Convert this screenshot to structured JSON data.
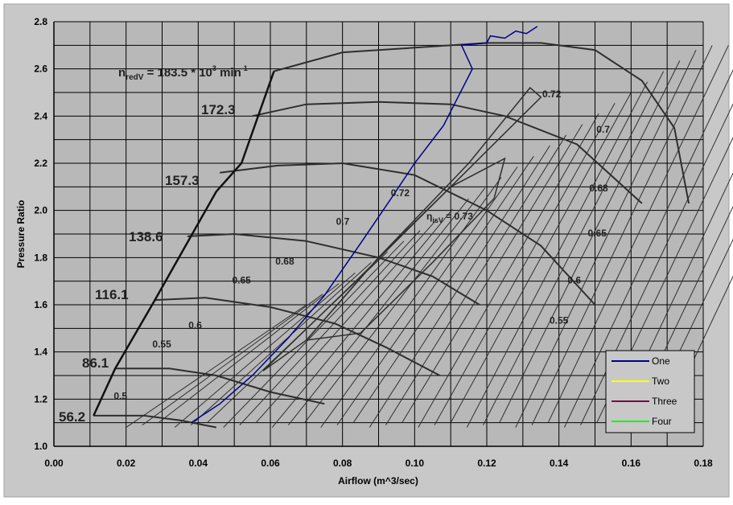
{
  "chart_data": {
    "type": "line",
    "xlabel": "Airflow (m^3/sec)",
    "ylabel": "Pressure Ratio",
    "xlim": [
      0,
      0.18
    ],
    "ylim": [
      1.0,
      2.8
    ],
    "x_ticks": [
      "0.00",
      "0.02",
      "0.04",
      "0.06",
      "0.08",
      "0.10",
      "0.12",
      "0.14",
      "0.16",
      "0.18"
    ],
    "y_ticks": [
      "1.0",
      "1.2",
      "1.4",
      "1.6",
      "1.8",
      "2.0",
      "2.2",
      "2.4",
      "2.6",
      "2.8"
    ],
    "grid": true,
    "legend_position": "bottom-right",
    "colors": {
      "outer_bg": "#ffffff",
      "panel_bg": "#c8c8c8",
      "plot_bg": "#b8b8b8",
      "grid": "#000000",
      "map_lines": "#2e2e2e"
    },
    "series": [
      {
        "name": "One",
        "color": "#00008b",
        "x": [
          0.038,
          0.046,
          0.055,
          0.065,
          0.075,
          0.085,
          0.093,
          0.1,
          0.108,
          0.116,
          0.113,
          0.12,
          0.121,
          0.125,
          0.128,
          0.131,
          0.134
        ],
        "y": [
          1.1,
          1.18,
          1.3,
          1.46,
          1.64,
          1.86,
          2.04,
          2.2,
          2.36,
          2.6,
          2.7,
          2.71,
          2.74,
          2.73,
          2.76,
          2.75,
          2.78
        ]
      },
      {
        "name": "Two",
        "color": "#ffff00",
        "x": [],
        "y": []
      },
      {
        "name": "Three",
        "color": "#800040",
        "x": [],
        "y": []
      },
      {
        "name": "Four",
        "color": "#00ff00",
        "x": [],
        "y": []
      }
    ],
    "map_background": {
      "speed_prefix": "n",
      "speed_prefix_sub": "redV",
      "speed_label_mid": " = 183.5 * 10",
      "speed_label_sup": "3",
      "speed_label_unit": " min",
      "speed_label_unit_sup": "-1",
      "speed_labels": [
        "172.3",
        "157.3",
        "138.6",
        "116.1",
        "86.1",
        "56.2"
      ],
      "efficiency_symbol": "η",
      "efficiency_symbol_sub": "isV",
      "efficiency_symbol_value": " = 0.73",
      "surge_line": {
        "x": [
          0.011,
          0.017,
          0.028,
          0.045,
          0.052,
          0.061
        ],
        "y": [
          1.13,
          1.33,
          1.62,
          2.08,
          2.2,
          2.59
        ]
      },
      "speed_lines": [
        {
          "x": [
            0.061,
            0.08,
            0.1,
            0.12,
            0.135,
            0.15,
            0.163,
            0.172,
            0.176
          ],
          "y": [
            2.59,
            2.67,
            2.69,
            2.71,
            2.71,
            2.68,
            2.55,
            2.35,
            2.03
          ]
        },
        {
          "x": [
            0.055,
            0.07,
            0.09,
            0.11,
            0.125,
            0.145,
            0.163
          ],
          "y": [
            2.4,
            2.45,
            2.46,
            2.45,
            2.4,
            2.28,
            2.03
          ]
        },
        {
          "x": [
            0.046,
            0.062,
            0.08,
            0.1,
            0.12,
            0.135,
            0.15
          ],
          "y": [
            2.16,
            2.19,
            2.2,
            2.15,
            2.0,
            1.85,
            1.6
          ]
        },
        {
          "x": [
            0.037,
            0.05,
            0.07,
            0.09,
            0.105,
            0.118
          ],
          "y": [
            1.89,
            1.9,
            1.87,
            1.8,
            1.72,
            1.6
          ]
        },
        {
          "x": [
            0.028,
            0.042,
            0.06,
            0.078,
            0.092,
            0.107
          ],
          "y": [
            1.62,
            1.63,
            1.59,
            1.52,
            1.42,
            1.3
          ]
        },
        {
          "x": [
            0.017,
            0.032,
            0.045,
            0.06,
            0.075
          ],
          "y": [
            1.33,
            1.33,
            1.3,
            1.23,
            1.18
          ]
        },
        {
          "x": [
            0.011,
            0.025,
            0.035,
            0.045
          ],
          "y": [
            1.13,
            1.13,
            1.11,
            1.08
          ]
        }
      ],
      "efficiency_labels": [
        {
          "text": "0.72",
          "x": 0.1354,
          "y": 2.48
        },
        {
          "text": "0.7",
          "x": 0.1504,
          "y": 2.33
        },
        {
          "text": "0.68",
          "x": 0.1484,
          "y": 2.08
        },
        {
          "text": "0.65",
          "x": 0.148,
          "y": 1.89
        },
        {
          "text": "0.6",
          "x": 0.1424,
          "y": 1.69
        },
        {
          "text": "0.55",
          "x": 0.1374,
          "y": 1.52
        },
        {
          "text": "0.72",
          "x": 0.0934,
          "y": 2.06
        },
        {
          "text": "0.7",
          "x": 0.0782,
          "y": 1.94
        },
        {
          "text": "0.68",
          "x": 0.0614,
          "y": 1.77
        },
        {
          "text": "0.65",
          "x": 0.0494,
          "y": 1.69
        },
        {
          "text": "0.6",
          "x": 0.0373,
          "y": 1.5
        },
        {
          "text": "0.55",
          "x": 0.0273,
          "y": 1.42
        },
        {
          "text": "0.5",
          "x": 0.0166,
          "y": 1.2
        }
      ],
      "efficiency_islands": [
        {
          "x": [
            0.07,
            0.09,
            0.11,
            0.125,
            0.122,
            0.105,
            0.085,
            0.07
          ],
          "y": [
            1.45,
            1.8,
            2.1,
            2.22,
            2.05,
            1.78,
            1.48,
            1.45
          ]
        },
        {
          "x": [
            0.058,
            0.085,
            0.11,
            0.135,
            0.132,
            0.115,
            0.09,
            0.07,
            0.058
          ],
          "y": [
            1.32,
            1.72,
            2.1,
            2.48,
            2.52,
            2.2,
            1.8,
            1.45,
            1.32
          ]
        }
      ]
    }
  }
}
